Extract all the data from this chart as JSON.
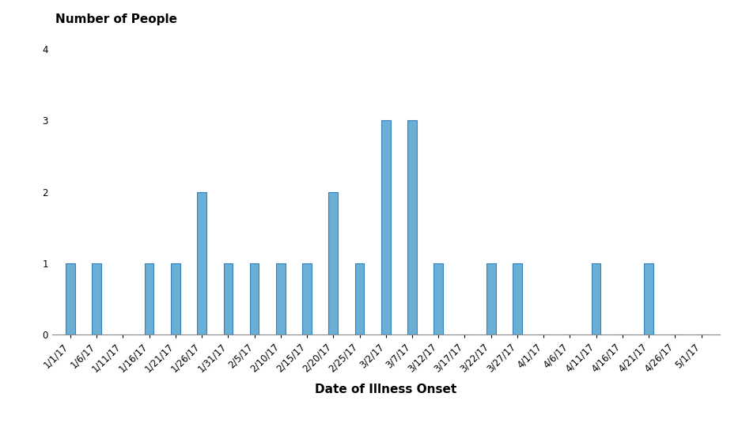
{
  "title": "Number of People",
  "xlabel": "Date of Illness Onset",
  "bar_color": "#6baed6",
  "bar_edge_color": "#3182bd",
  "background_color": "#ffffff",
  "ylim": [
    0,
    4
  ],
  "yticks": [
    0,
    1,
    2,
    3,
    4
  ],
  "tick_labels": [
    "1/1/17",
    "1/6/17",
    "1/11/17",
    "1/16/17",
    "1/21/17",
    "1/26/17",
    "1/31/17",
    "2/5/17",
    "2/10/17",
    "2/15/17",
    "2/20/17",
    "2/25/17",
    "3/2/17",
    "3/7/17",
    "3/12/17",
    "3/17/17",
    "3/22/17",
    "3/27/17",
    "4/1/17",
    "4/6/17",
    "4/11/17",
    "4/16/17",
    "4/21/17",
    "4/26/17",
    "5/1/17"
  ],
  "values": [
    1,
    1,
    0,
    1,
    1,
    2,
    1,
    1,
    1,
    1,
    2,
    1,
    3,
    3,
    1,
    0,
    1,
    1,
    0,
    0,
    1,
    0,
    1,
    0,
    0
  ],
  "title_fontsize": 11,
  "xlabel_fontsize": 11,
  "tick_fontsize": 8.5,
  "bar_width": 0.35
}
